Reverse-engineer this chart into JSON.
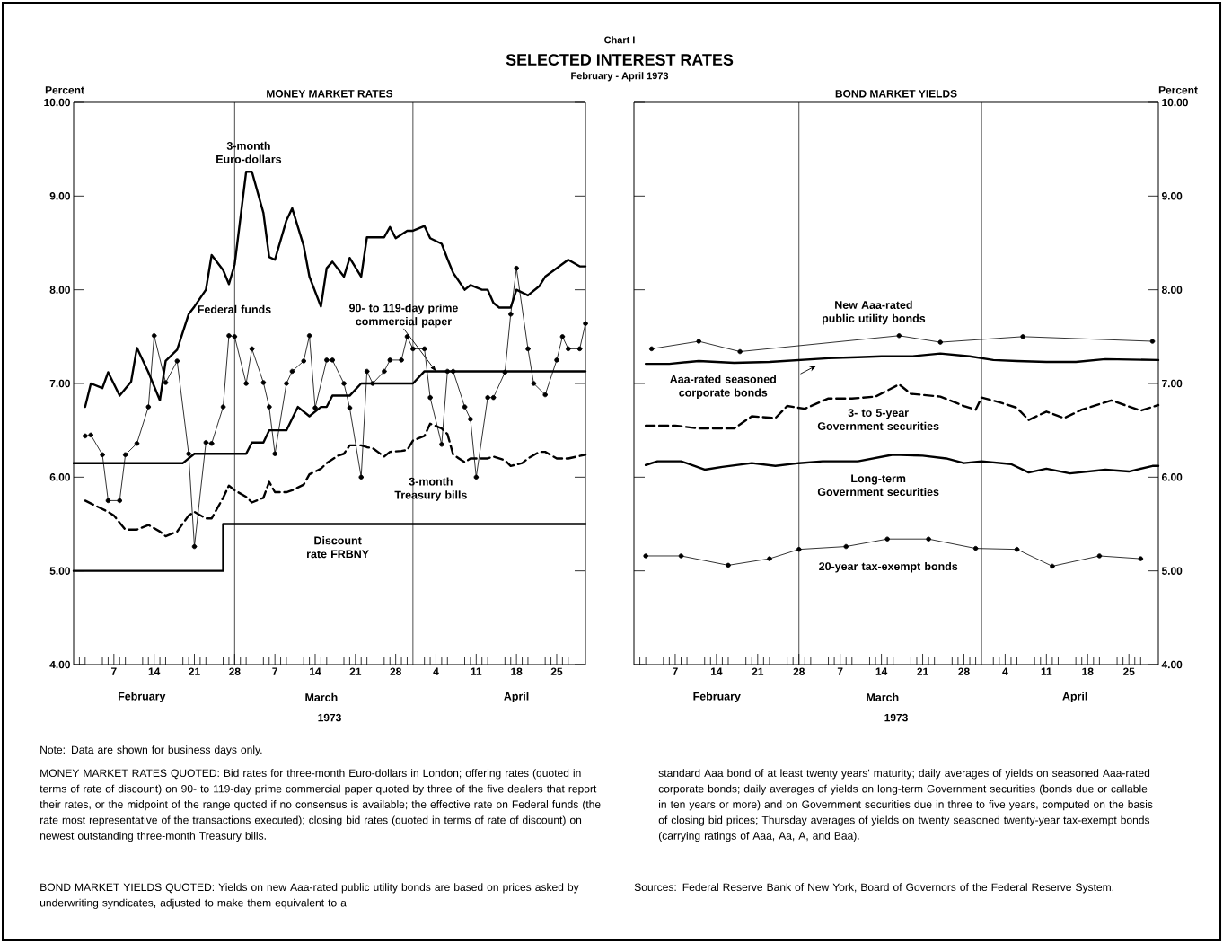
{
  "chart_data": [
    {
      "type": "line",
      "title": "MONEY MARKET RATES",
      "ylabel": "Percent",
      "xlabel": "1973",
      "xlim": [
        "1973-01-31",
        "1973-04-30"
      ],
      "ylim": [
        4,
        10
      ],
      "yticks": [
        {
          "value": 4,
          "label": "4.00"
        },
        {
          "value": 5,
          "label": "5.00"
        },
        {
          "value": 6,
          "label": "6.00"
        },
        {
          "value": 7,
          "label": "7.00"
        },
        {
          "value": 8,
          "label": "8.00"
        },
        {
          "value": 9,
          "label": "9.00"
        },
        {
          "value": 10,
          "label": "10.00"
        }
      ],
      "xticks": [
        {
          "value": "1973-02-01",
          "label": null
        },
        {
          "value": "1973-02-02",
          "label": null
        },
        {
          "value": "1973-02-05",
          "label": null
        },
        {
          "value": "1973-02-06",
          "label": null
        },
        {
          "value": "1973-02-07",
          "label": "7"
        },
        {
          "value": "1973-02-08",
          "label": null
        },
        {
          "value": "1973-02-09",
          "label": null
        },
        {
          "value": "1973-02-12",
          "label": null
        },
        {
          "value": "1973-02-13",
          "label": null
        },
        {
          "value": "1973-02-14",
          "label": "14"
        },
        {
          "value": "1973-02-15",
          "label": null
        },
        {
          "value": "1973-02-16",
          "label": null
        },
        {
          "value": "1973-02-19",
          "label": null
        },
        {
          "value": "1973-02-20",
          "label": null
        },
        {
          "value": "1973-02-21",
          "label": "21"
        },
        {
          "value": "1973-02-22",
          "label": null
        },
        {
          "value": "1973-02-23",
          "label": null
        },
        {
          "value": "1973-02-26",
          "label": null
        },
        {
          "value": "1973-02-27",
          "label": null
        },
        {
          "value": "1973-02-28",
          "label": "28"
        },
        {
          "value": "1973-03-01",
          "label": null
        },
        {
          "value": "1973-03-02",
          "label": null
        },
        {
          "value": "1973-03-05",
          "label": null
        },
        {
          "value": "1973-03-06",
          "label": null
        },
        {
          "value": "1973-03-07",
          "label": "7"
        },
        {
          "value": "1973-03-08",
          "label": null
        },
        {
          "value": "1973-03-09",
          "label": null
        },
        {
          "value": "1973-03-12",
          "label": null
        },
        {
          "value": "1973-03-13",
          "label": null
        },
        {
          "value": "1973-03-14",
          "label": "14"
        },
        {
          "value": "1973-03-15",
          "label": null
        },
        {
          "value": "1973-03-16",
          "label": null
        },
        {
          "value": "1973-03-19",
          "label": null
        },
        {
          "value": "1973-03-20",
          "label": null
        },
        {
          "value": "1973-03-21",
          "label": "21"
        },
        {
          "value": "1973-03-22",
          "label": null
        },
        {
          "value": "1973-03-23",
          "label": null
        },
        {
          "value": "1973-03-26",
          "label": null
        },
        {
          "value": "1973-03-27",
          "label": null
        },
        {
          "value": "1973-03-28",
          "label": "28"
        },
        {
          "value": "1973-03-29",
          "label": null
        },
        {
          "value": "1973-03-30",
          "label": null
        },
        {
          "value": "1973-04-02",
          "label": null
        },
        {
          "value": "1973-04-03",
          "label": null
        },
        {
          "value": "1973-04-04",
          "label": "4"
        },
        {
          "value": "1973-04-05",
          "label": null
        },
        {
          "value": "1973-04-06",
          "label": null
        },
        {
          "value": "1973-04-09",
          "label": null
        },
        {
          "value": "1973-04-10",
          "label": null
        },
        {
          "value": "1973-04-11",
          "label": "11"
        },
        {
          "value": "1973-04-12",
          "label": null
        },
        {
          "value": "1973-04-13",
          "label": null
        },
        {
          "value": "1973-04-16",
          "label": null
        },
        {
          "value": "1973-04-17",
          "label": null
        },
        {
          "value": "1973-04-18",
          "label": "18"
        },
        {
          "value": "1973-04-19",
          "label": null
        },
        {
          "value": "1973-04-20",
          "label": null
        },
        {
          "value": "1973-04-23",
          "label": null
        },
        {
          "value": "1973-04-24",
          "label": null
        },
        {
          "value": "1973-04-25",
          "label": "25"
        },
        {
          "value": "1973-04-26",
          "label": null
        },
        {
          "value": "1973-04-27",
          "label": null
        }
      ],
      "ref_lines": [
        {
          "axis": "x",
          "value": "1973-02-28"
        },
        {
          "axis": "x",
          "value": "1973-03-31"
        }
      ],
      "series": [
        {
          "color": "#000000",
          "x": [
            "1973-02-02",
            "1973-02-03",
            "1973-02-05",
            "1973-02-06",
            "1973-02-08",
            "1973-02-10",
            "1973-02-11",
            "1973-02-13",
            "1973-02-15",
            "1973-02-16",
            "1973-02-18",
            "1973-02-20",
            "1973-02-21",
            "1973-02-23",
            "1973-02-24",
            "1973-02-26",
            "1973-02-27",
            "1973-02-28",
            "1973-03-02",
            "1973-03-03",
            "1973-03-05",
            "1973-03-06",
            "1973-03-07",
            "1973-03-09",
            "1973-03-10",
            "1973-03-12",
            "1973-03-13",
            "1973-03-15",
            "1973-03-16",
            "1973-03-17",
            "1973-03-19",
            "1973-03-20",
            "1973-03-22",
            "1973-03-23",
            "1973-03-24",
            "1973-03-26",
            "1973-03-27",
            "1973-03-28",
            "1973-03-30",
            "1973-03-31",
            "1973-04-02",
            "1973-04-03",
            "1973-04-05",
            "1973-04-06",
            "1973-04-07",
            "1973-04-09",
            "1973-04-10",
            "1973-04-12",
            "1973-04-13",
            "1973-04-14",
            "1973-04-15",
            "1973-04-17",
            "1973-04-18",
            "1973-04-20",
            "1973-04-22",
            "1973-04-23",
            "1973-04-25",
            "1973-04-27",
            "1973-04-29",
            "1973-04-30"
          ],
          "values": [
            6.75,
            7.0,
            6.95,
            7.12,
            6.87,
            7.02,
            7.38,
            7.12,
            6.82,
            7.24,
            7.36,
            7.74,
            7.82,
            8.0,
            8.37,
            8.21,
            8.06,
            8.27,
            9.26,
            9.26,
            8.82,
            8.35,
            8.32,
            8.74,
            8.87,
            8.47,
            8.14,
            7.82,
            8.23,
            8.3,
            8.14,
            8.34,
            8.14,
            8.56,
            8.56,
            8.56,
            8.67,
            8.55,
            8.63,
            8.63,
            8.68,
            8.55,
            8.49,
            8.33,
            8.18,
            8.0,
            8.05,
            8.0,
            8.0,
            7.86,
            7.81,
            7.81,
            8.0,
            7.94,
            8.04,
            8.14,
            8.23,
            8.32,
            8.25,
            8.25
          ]
        },
        {
          "color": "#000000",
          "marker": "circle",
          "x": [
            "1973-02-02",
            "1973-02-03",
            "1973-02-05",
            "1973-02-06",
            "1973-02-08",
            "1973-02-09",
            "1973-02-11",
            "1973-02-13",
            "1973-02-14",
            "1973-02-16",
            "1973-02-18",
            "1973-02-20",
            "1973-02-21",
            "1973-02-23",
            "1973-02-24",
            "1973-02-26",
            "1973-02-27",
            "1973-02-28",
            "1973-03-02",
            "1973-03-03",
            "1973-03-05",
            "1973-03-06",
            "1973-03-07",
            "1973-03-09",
            "1973-03-10",
            "1973-03-12",
            "1973-03-13",
            "1973-03-14",
            "1973-03-16",
            "1973-03-17",
            "1973-03-19",
            "1973-03-20",
            "1973-03-22",
            "1973-03-23",
            "1973-03-24",
            "1973-03-26",
            "1973-03-27",
            "1973-03-29",
            "1973-03-30",
            "1973-03-31",
            "1973-04-02",
            "1973-04-03",
            "1973-04-05",
            "1973-04-06",
            "1973-04-07",
            "1973-04-09",
            "1973-04-10",
            "1973-04-11",
            "1973-04-13",
            "1973-04-14",
            "1973-04-16",
            "1973-04-17",
            "1973-04-18",
            "1973-04-20",
            "1973-04-21",
            "1973-04-23",
            "1973-04-25",
            "1973-04-26",
            "1973-04-27",
            "1973-04-29",
            "1973-04-30"
          ],
          "values": [
            6.44,
            6.45,
            6.24,
            5.75,
            5.75,
            6.24,
            6.36,
            6.75,
            7.51,
            7.01,
            7.24,
            6.25,
            5.26,
            6.37,
            6.36,
            6.75,
            7.51,
            7.5,
            7.0,
            7.37,
            7.01,
            6.75,
            6.25,
            7.0,
            7.13,
            7.24,
            7.51,
            6.74,
            7.25,
            7.25,
            7.0,
            6.74,
            6.0,
            7.13,
            7.0,
            7.13,
            7.25,
            7.25,
            7.5,
            7.37,
            7.37,
            6.85,
            6.35,
            7.13,
            7.13,
            6.75,
            6.62,
            6.0,
            6.85,
            6.85,
            7.12,
            7.74,
            8.23,
            7.37,
            7.0,
            6.88,
            7.25,
            7.5,
            7.37,
            7.37,
            7.64
          ]
        },
        {
          "color": "#000000",
          "x": [
            "1973-01-31",
            "1973-02-19",
            "1973-02-21",
            "1973-03-02",
            "1973-03-03",
            "1973-03-05",
            "1973-03-06",
            "1973-03-09",
            "1973-03-11",
            "1973-03-13",
            "1973-03-15",
            "1973-03-16",
            "1973-03-17",
            "1973-03-20",
            "1973-03-22",
            "1973-03-31",
            "1973-04-02",
            "1973-04-30"
          ],
          "values": [
            6.15,
            6.15,
            6.25,
            6.25,
            6.37,
            6.37,
            6.5,
            6.5,
            6.75,
            6.65,
            6.75,
            6.75,
            6.87,
            6.87,
            7.0,
            7.0,
            7.13,
            7.13
          ]
        },
        {
          "color": "#000000",
          "line_style": "dashed",
          "x": [
            "1973-02-02",
            "1973-02-04",
            "1973-02-06",
            "1973-02-07",
            "1973-02-09",
            "1973-02-11",
            "1973-02-13",
            "1973-02-15",
            "1973-02-16",
            "1973-02-18",
            "1973-02-20",
            "1973-02-21",
            "1973-02-23",
            "1973-02-24",
            "1973-02-26",
            "1973-02-27",
            "1973-02-28",
            "1973-03-02",
            "1973-03-03",
            "1973-03-05",
            "1973-03-06",
            "1973-03-07",
            "1973-03-09",
            "1973-03-10",
            "1973-03-12",
            "1973-03-13",
            "1973-03-15",
            "1973-03-16",
            "1973-03-18",
            "1973-03-19",
            "1973-03-20",
            "1973-03-22",
            "1973-03-23",
            "1973-03-24",
            "1973-03-26",
            "1973-03-27",
            "1973-03-29",
            "1973-03-30",
            "1973-03-31",
            "1973-04-02",
            "1973-04-03",
            "1973-04-05",
            "1973-04-06",
            "1973-04-07",
            "1973-04-09",
            "1973-04-10",
            "1973-04-12",
            "1973-04-13",
            "1973-04-14",
            "1973-04-16",
            "1973-04-17",
            "1973-04-19",
            "1973-04-20",
            "1973-04-22",
            "1973-04-23",
            "1973-04-25",
            "1973-04-27",
            "1973-04-30"
          ],
          "values": [
            5.75,
            5.69,
            5.63,
            5.59,
            5.44,
            5.44,
            5.49,
            5.42,
            5.37,
            5.42,
            5.59,
            5.63,
            5.56,
            5.56,
            5.78,
            5.91,
            5.86,
            5.79,
            5.73,
            5.78,
            5.95,
            5.84,
            5.84,
            5.86,
            5.92,
            6.03,
            6.09,
            6.15,
            6.23,
            6.25,
            6.34,
            6.34,
            6.32,
            6.31,
            6.22,
            6.27,
            6.28,
            6.29,
            6.39,
            6.44,
            6.57,
            6.52,
            6.46,
            6.24,
            6.16,
            6.2,
            6.2,
            6.2,
            6.22,
            6.18,
            6.12,
            6.15,
            6.2,
            6.27,
            6.27,
            6.2,
            6.2,
            6.24
          ]
        },
        {
          "type": "step",
          "color": "#000000",
          "x": [
            "1973-01-31",
            "1973-02-26",
            "1973-04-30"
          ],
          "values": [
            5.0,
            5.5,
            5.5
          ]
        }
      ],
      "annotations": [
        "Chart I",
        "SELECTED INTEREST RATES",
        "February - April 1973",
        "3-month Euro-dollars",
        "Federal funds",
        {
          "text": "90- to 119-day prime commercial paper",
          "x": "1973-04-04",
          "y": 7.13
        },
        "3-month Treasury bills",
        "Discount rate FRBNY",
        "February",
        "March",
        "April",
        "Note: Data are shown for business days only.",
        "MONEY MARKET RATES QUOTED: Bid rates for three-month Euro-dollars in London; offering rates (quoted in terms of rate of discount) on 90- to 119-day prime commercial paper quoted by three of the five dealers that report their rates, or the midpoint of the range quoted if no consensus is available; the effective rate on Federal funds (the rate most representative of the transactions executed); closing bid rates (quoted in terms of rate of discount) on newest outstanding three-month Treasury bills.",
        "BOND MARKET YIELDS QUOTED: Yields on new Aaa-rated public utility bonds are based on prices asked by underwriting syndicates, adjusted to make them equivalent to a",
        "standard Aaa bond of at least twenty years' maturity; daily averages of yields on seasoned Aaa-rated corporate bonds; daily averages of yields on long-term Government securities (bonds due or callable in ten years or more) and on Government securities due in three to five years, computed on the basis of closing bid prices; Thursday averages of yields on twenty seasoned twenty-year tax-exempt bonds (carrying ratings of Aaa, Aa, A, and Baa).",
        "Sources: Federal Reserve Bank of New York, Board of Governors of the Federal Reserve System."
      ]
    },
    {
      "type": "line",
      "title": "BOND MARKET YIELDS",
      "ylabel": "Percent",
      "xlabel": "1973",
      "xlim": [
        "1973-01-31",
        "1973-04-30"
      ],
      "ylim": [
        4,
        10
      ],
      "yticks": [
        {
          "value": 4,
          "label": "4.00"
        },
        {
          "value": 5,
          "label": "5.00"
        },
        {
          "value": 6,
          "label": "6.00"
        },
        {
          "value": 7,
          "label": "7.00"
        },
        {
          "value": 8,
          "label": "8.00"
        },
        {
          "value": 9,
          "label": "9.00"
        },
        {
          "value": 10,
          "label": "10.00"
        }
      ],
      "xticks": [
        {
          "value": "1973-02-01",
          "label": null
        },
        {
          "value": "1973-02-02",
          "label": null
        },
        {
          "value": "1973-02-05",
          "label": null
        },
        {
          "value": "1973-02-06",
          "label": null
        },
        {
          "value": "1973-02-07",
          "label": "7"
        },
        {
          "value": "1973-02-08",
          "label": null
        },
        {
          "value": "1973-02-09",
          "label": null
        },
        {
          "value": "1973-02-12",
          "label": null
        },
        {
          "value": "1973-02-13",
          "label": null
        },
        {
          "value": "1973-02-14",
          "label": "14"
        },
        {
          "value": "1973-02-15",
          "label": null
        },
        {
          "value": "1973-02-16",
          "label": null
        },
        {
          "value": "1973-02-19",
          "label": null
        },
        {
          "value": "1973-02-20",
          "label": null
        },
        {
          "value": "1973-02-21",
          "label": "21"
        },
        {
          "value": "1973-02-22",
          "label": null
        },
        {
          "value": "1973-02-23",
          "label": null
        },
        {
          "value": "1973-02-26",
          "label": null
        },
        {
          "value": "1973-02-27",
          "label": null
        },
        {
          "value": "1973-02-28",
          "label": "28"
        },
        {
          "value": "1973-03-01",
          "label": null
        },
        {
          "value": "1973-03-02",
          "label": null
        },
        {
          "value": "1973-03-05",
          "label": null
        },
        {
          "value": "1973-03-06",
          "label": null
        },
        {
          "value": "1973-03-07",
          "label": "7"
        },
        {
          "value": "1973-03-08",
          "label": null
        },
        {
          "value": "1973-03-09",
          "label": null
        },
        {
          "value": "1973-03-12",
          "label": null
        },
        {
          "value": "1973-03-13",
          "label": null
        },
        {
          "value": "1973-03-14",
          "label": "14"
        },
        {
          "value": "1973-03-15",
          "label": null
        },
        {
          "value": "1973-03-16",
          "label": null
        },
        {
          "value": "1973-03-19",
          "label": null
        },
        {
          "value": "1973-03-20",
          "label": null
        },
        {
          "value": "1973-03-21",
          "label": "21"
        },
        {
          "value": "1973-03-22",
          "label": null
        },
        {
          "value": "1973-03-23",
          "label": null
        },
        {
          "value": "1973-03-26",
          "label": null
        },
        {
          "value": "1973-03-27",
          "label": null
        },
        {
          "value": "1973-03-28",
          "label": "28"
        },
        {
          "value": "1973-03-29",
          "label": null
        },
        {
          "value": "1973-03-30",
          "label": null
        },
        {
          "value": "1973-04-02",
          "label": null
        },
        {
          "value": "1973-04-03",
          "label": null
        },
        {
          "value": "1973-04-04",
          "label": "4"
        },
        {
          "value": "1973-04-05",
          "label": null
        },
        {
          "value": "1973-04-06",
          "label": null
        },
        {
          "value": "1973-04-09",
          "label": null
        },
        {
          "value": "1973-04-10",
          "label": null
        },
        {
          "value": "1973-04-11",
          "label": "11"
        },
        {
          "value": "1973-04-12",
          "label": null
        },
        {
          "value": "1973-04-13",
          "label": null
        },
        {
          "value": "1973-04-16",
          "label": null
        },
        {
          "value": "1973-04-17",
          "label": null
        },
        {
          "value": "1973-04-18",
          "label": "18"
        },
        {
          "value": "1973-04-19",
          "label": null
        },
        {
          "value": "1973-04-20",
          "label": null
        },
        {
          "value": "1973-04-23",
          "label": null
        },
        {
          "value": "1973-04-24",
          "label": null
        },
        {
          "value": "1973-04-25",
          "label": "25"
        },
        {
          "value": "1973-04-26",
          "label": null
        },
        {
          "value": "1973-04-27",
          "label": null
        }
      ],
      "ref_lines": [
        {
          "axis": "x",
          "value": "1973-02-28"
        },
        {
          "axis": "x",
          "value": "1973-03-31"
        }
      ],
      "series": [
        {
          "color": "#000000",
          "marker": "circle",
          "x": [
            "1973-02-03",
            "1973-02-11",
            "1973-02-18",
            "1973-03-17",
            "1973-03-24",
            "1973-04-07",
            "1973-04-29"
          ],
          "values": [
            7.37,
            7.45,
            7.34,
            7.51,
            7.44,
            7.5,
            7.45
          ]
        },
        {
          "color": "#000000",
          "x": [
            "1973-02-02",
            "1973-02-06",
            "1973-02-11",
            "1973-02-17",
            "1973-02-23",
            "1973-02-28",
            "1973-03-05",
            "1973-03-10",
            "1973-03-14",
            "1973-03-19",
            "1973-03-24",
            "1973-03-29",
            "1973-04-02",
            "1973-04-06",
            "1973-04-11",
            "1973-04-16",
            "1973-04-21",
            "1973-04-30"
          ],
          "values": [
            7.21,
            7.21,
            7.24,
            7.22,
            7.23,
            7.25,
            7.27,
            7.28,
            7.29,
            7.29,
            7.32,
            7.29,
            7.25,
            7.24,
            7.23,
            7.23,
            7.26,
            7.25
          ]
        },
        {
          "color": "#000000",
          "line_style": "dashed",
          "x": [
            "1973-02-02",
            "1973-02-07",
            "1973-02-11",
            "1973-02-17",
            "1973-02-20",
            "1973-02-24",
            "1973-02-26",
            "1973-03-01",
            "1973-03-05",
            "1973-03-09",
            "1973-03-13",
            "1973-03-17",
            "1973-03-19",
            "1973-03-24",
            "1973-03-28",
            "1973-03-30",
            "1973-03-31",
            "1973-04-03",
            "1973-04-06",
            "1973-04-08",
            "1973-04-11",
            "1973-04-14",
            "1973-04-17",
            "1973-04-22",
            "1973-04-27",
            "1973-04-30"
          ],
          "values": [
            6.55,
            6.55,
            6.52,
            6.52,
            6.65,
            6.63,
            6.76,
            6.73,
            6.84,
            6.84,
            6.86,
            6.99,
            6.89,
            6.86,
            6.76,
            6.72,
            6.85,
            6.8,
            6.74,
            6.61,
            6.7,
            6.63,
            6.72,
            6.82,
            6.71,
            6.77
          ]
        },
        {
          "color": "#000000",
          "x": [
            "1973-02-02",
            "1973-02-04",
            "1973-02-08",
            "1973-02-12",
            "1973-02-15",
            "1973-02-20",
            "1973-02-24",
            "1973-02-28",
            "1973-03-04",
            "1973-03-10",
            "1973-03-16",
            "1973-03-21",
            "1973-03-25",
            "1973-03-28",
            "1973-03-31",
            "1973-04-05",
            "1973-04-08",
            "1973-04-11",
            "1973-04-15",
            "1973-04-21",
            "1973-04-25",
            "1973-04-29",
            "1973-04-30"
          ],
          "values": [
            6.13,
            6.17,
            6.17,
            6.08,
            6.11,
            6.15,
            6.12,
            6.15,
            6.17,
            6.17,
            6.24,
            6.23,
            6.2,
            6.15,
            6.17,
            6.14,
            6.05,
            6.09,
            6.04,
            6.08,
            6.06,
            6.12,
            6.12
          ]
        },
        {
          "color": "#000000",
          "marker": "circle",
          "x": [
            "1973-02-02",
            "1973-02-08",
            "1973-02-16",
            "1973-02-23",
            "1973-02-28",
            "1973-03-08",
            "1973-03-15",
            "1973-03-22",
            "1973-03-30",
            "1973-04-06",
            "1973-04-12",
            "1973-04-20",
            "1973-04-27"
          ],
          "values": [
            5.16,
            5.16,
            5.06,
            5.13,
            5.23,
            5.26,
            5.34,
            5.34,
            5.24,
            5.23,
            5.05,
            5.16,
            5.13
          ]
        }
      ],
      "annotations": [
        "New Aaa-rated public utility bonds",
        "Aaa-rated seasoned corporate bonds",
        "3- to 5-year Government securities",
        "Long-term Government securities",
        "20-year tax-exempt bonds",
        "February",
        "March",
        "April"
      ]
    }
  ]
}
